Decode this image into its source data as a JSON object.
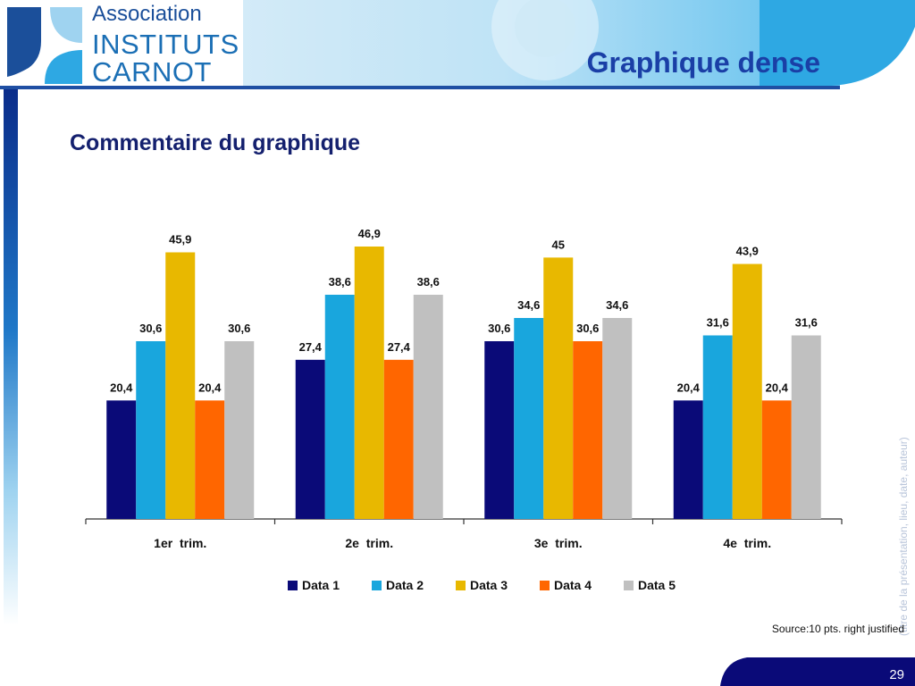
{
  "header": {
    "logo_line1": "Association",
    "logo_line2": "INSTITUTS",
    "logo_line3": "CARNOT",
    "title": "Graphique dense"
  },
  "subtitle": "Commentaire du graphique",
  "side_text": "(titre de la présentation, lieu, date, auteur)",
  "source_note": "Source:10 pts. right justified",
  "page_number": "29",
  "colors": {
    "title": "#1a3fa6",
    "subtitle": "#14206e",
    "navy": "#0a0a78"
  },
  "chart_data": {
    "type": "bar",
    "categories": [
      "1er  trim.",
      "2e  trim.",
      "3e  trim.",
      "4e  trim."
    ],
    "series": [
      {
        "name": "Data 1",
        "color": "#0a0a78",
        "values": [
          20.4,
          27.4,
          30.6,
          20.4
        ],
        "labels": [
          "20,4",
          "27,4",
          "30,6",
          "20,4"
        ]
      },
      {
        "name": "Data 2",
        "color": "#19a6dd",
        "values": [
          30.6,
          38.6,
          34.6,
          31.6
        ],
        "labels": [
          "30,6",
          "38,6",
          "34,6",
          "31,6"
        ]
      },
      {
        "name": "Data 3",
        "color": "#e8b800",
        "values": [
          45.9,
          46.9,
          45,
          43.9
        ],
        "labels": [
          "45,9",
          "46,9",
          "45",
          "43,9"
        ]
      },
      {
        "name": "Data 4",
        "color": "#ff6600",
        "values": [
          20.4,
          27.4,
          30.6,
          20.4
        ],
        "labels": [
          "20,4",
          "27,4",
          "30,6",
          "20,4"
        ]
      },
      {
        "name": "Data 5",
        "color": "#c0c0c0",
        "values": [
          30.6,
          38.6,
          34.6,
          31.6
        ],
        "labels": [
          "30,6",
          "38,6",
          "34,6",
          "31,6"
        ]
      }
    ],
    "ylim": [
      0,
      46.9
    ],
    "grid": false,
    "legend": "bottom"
  }
}
